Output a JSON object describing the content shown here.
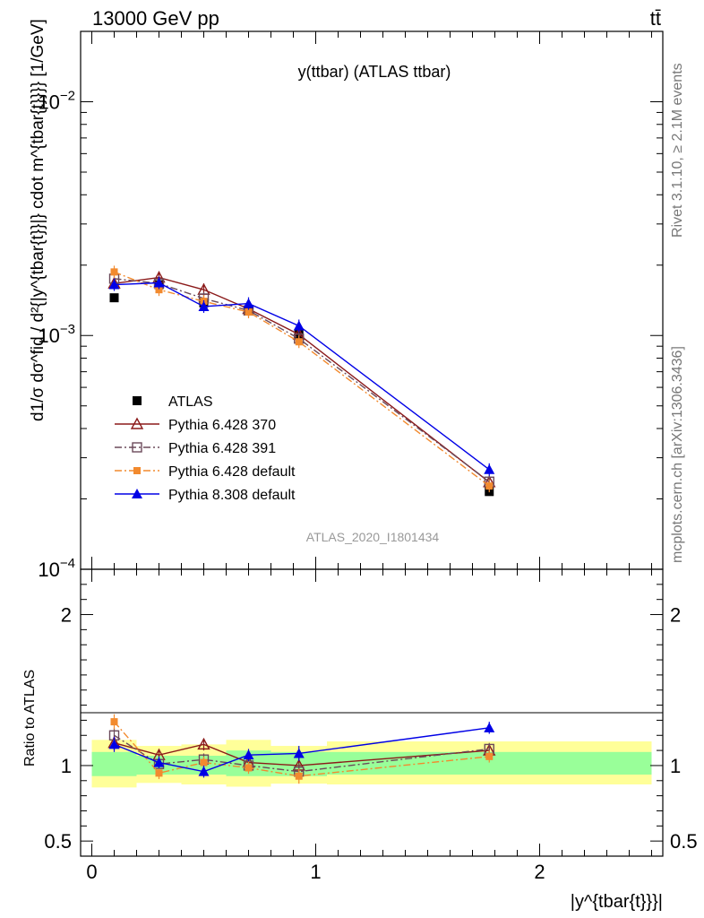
{
  "header": {
    "left": "13000 GeV pp",
    "right": "tt̄"
  },
  "side_labels": {
    "rivet": "Rivet 3.1.10, ≥ 2.1M events",
    "mcplots": "mcplots.cern.ch [arXiv:1306.3436]"
  },
  "colors": {
    "atlas": "#000000",
    "p370": "#8b1a1a",
    "p391": "#6b4a5a",
    "pdefault6": "#f28a2e",
    "p8": "#0000e6",
    "band_yellow": "#ffff99",
    "band_green": "#99ff99"
  },
  "chart_data": [
    {
      "type": "line",
      "panel": "main",
      "title": "y(ttbar) (ATLAS ttbar)",
      "watermark": "ATLAS_2020_I1801434",
      "ylabel": "d1/σ dσ^fid / d²{|y^{tbar{t}}|} cdot m^{tbar{t}}}} [1/GeV]",
      "yscale": "log",
      "ylim": [
        0.0001,
        0.02
      ],
      "xlim": [
        -0.05,
        2.55
      ],
      "y_ticks": [
        {
          "value": 0.0001,
          "base": "10",
          "exp": "−4"
        },
        {
          "value": 0.001,
          "base": "10",
          "exp": "−3"
        },
        {
          "value": 0.01,
          "base": "10",
          "exp": "−2"
        }
      ],
      "x": [
        0.1,
        0.3,
        0.5,
        0.7,
        0.925,
        1.775
      ],
      "series": [
        {
          "name": "ATLAS",
          "key": "atlas",
          "marker": "square",
          "line": "none",
          "values": [
            0.00145,
            0.00165,
            0.00138,
            0.00128,
            0.00101,
            0.000215
          ]
        },
        {
          "name": "Pythia 6.428 370",
          "key": "p370",
          "marker": "triangle-open",
          "line": "solid",
          "values": [
            0.00167,
            0.00177,
            0.00157,
            0.0013,
            0.00101,
            0.000236
          ]
        },
        {
          "name": "Pythia 6.428 391",
          "key": "p391",
          "marker": "square-open",
          "line": "dashdot",
          "values": [
            0.00175,
            0.00167,
            0.00144,
            0.00128,
            0.00097,
            0.000237
          ]
        },
        {
          "name": "Pythia 6.428 default",
          "key": "pdefault6",
          "marker": "square-small",
          "line": "dashdot",
          "values": [
            0.00187,
            0.00157,
            0.0014,
            0.00126,
            0.00094,
            0.000227
          ]
        },
        {
          "name": "Pythia 8.308 default",
          "key": "p8",
          "marker": "triangle",
          "line": "solid",
          "values": [
            0.00165,
            0.00168,
            0.00133,
            0.00137,
            0.0011,
            0.000267
          ]
        }
      ]
    },
    {
      "type": "line",
      "panel": "ratio",
      "ylabel": "Ratio to ATLAS",
      "xlabel": "|y^{tbar{t}}}|",
      "ylim": [
        0.4,
        2.3
      ],
      "xlim": [
        -0.05,
        2.55
      ],
      "y_ticks": [
        0.5,
        1,
        2
      ],
      "y_tick_labels": [
        "0.5",
        "1",
        "2"
      ],
      "x_ticks": [
        0,
        1,
        2
      ],
      "x_tick_labels": [
        "0",
        "1",
        "2"
      ],
      "bands": [
        {
          "x0": 0.0,
          "x1": 0.2,
          "yellow": [
            0.855,
            1.17
          ],
          "green": [
            0.93,
            1.09
          ]
        },
        {
          "x0": 0.2,
          "x1": 0.4,
          "yellow": [
            0.885,
            1.13
          ],
          "green": [
            0.94,
            1.065
          ]
        },
        {
          "x0": 0.4,
          "x1": 0.6,
          "yellow": [
            0.875,
            1.14
          ],
          "green": [
            0.94,
            1.065
          ]
        },
        {
          "x0": 0.6,
          "x1": 0.8,
          "yellow": [
            0.86,
            1.17
          ],
          "green": [
            0.93,
            1.1
          ]
        },
        {
          "x0": 0.8,
          "x1": 1.05,
          "yellow": [
            0.88,
            1.13
          ],
          "green": [
            0.93,
            1.09
          ]
        },
        {
          "x0": 1.05,
          "x1": 2.5,
          "yellow": [
            0.875,
            1.16
          ],
          "green": [
            0.94,
            1.09
          ]
        }
      ],
      "x": [
        0.1,
        0.3,
        0.5,
        0.7,
        0.925,
        1.775
      ],
      "series": [
        {
          "name": "Pythia 6.428 370",
          "key": "p370",
          "marker": "triangle-open",
          "line": "solid",
          "values": [
            1.15,
            1.07,
            1.14,
            1.02,
            1.0,
            1.1
          ]
        },
        {
          "name": "Pythia 6.428 391",
          "key": "p391",
          "marker": "square-open",
          "line": "dashdot",
          "values": [
            1.2,
            1.01,
            1.04,
            1.0,
            0.96,
            1.11
          ]
        },
        {
          "name": "Pythia 6.428 default",
          "key": "pdefault6",
          "marker": "square-small",
          "line": "dashdot",
          "values": [
            1.29,
            0.95,
            1.02,
            0.985,
            0.93,
            1.06
          ]
        },
        {
          "name": "Pythia 8.308 default",
          "key": "p8",
          "marker": "triangle",
          "line": "solid",
          "values": [
            1.14,
            1.02,
            0.96,
            1.07,
            1.08,
            1.25
          ]
        }
      ],
      "errors": [
        0.05,
        0.04,
        0.04,
        0.04,
        0.05,
        0.04
      ]
    }
  ]
}
